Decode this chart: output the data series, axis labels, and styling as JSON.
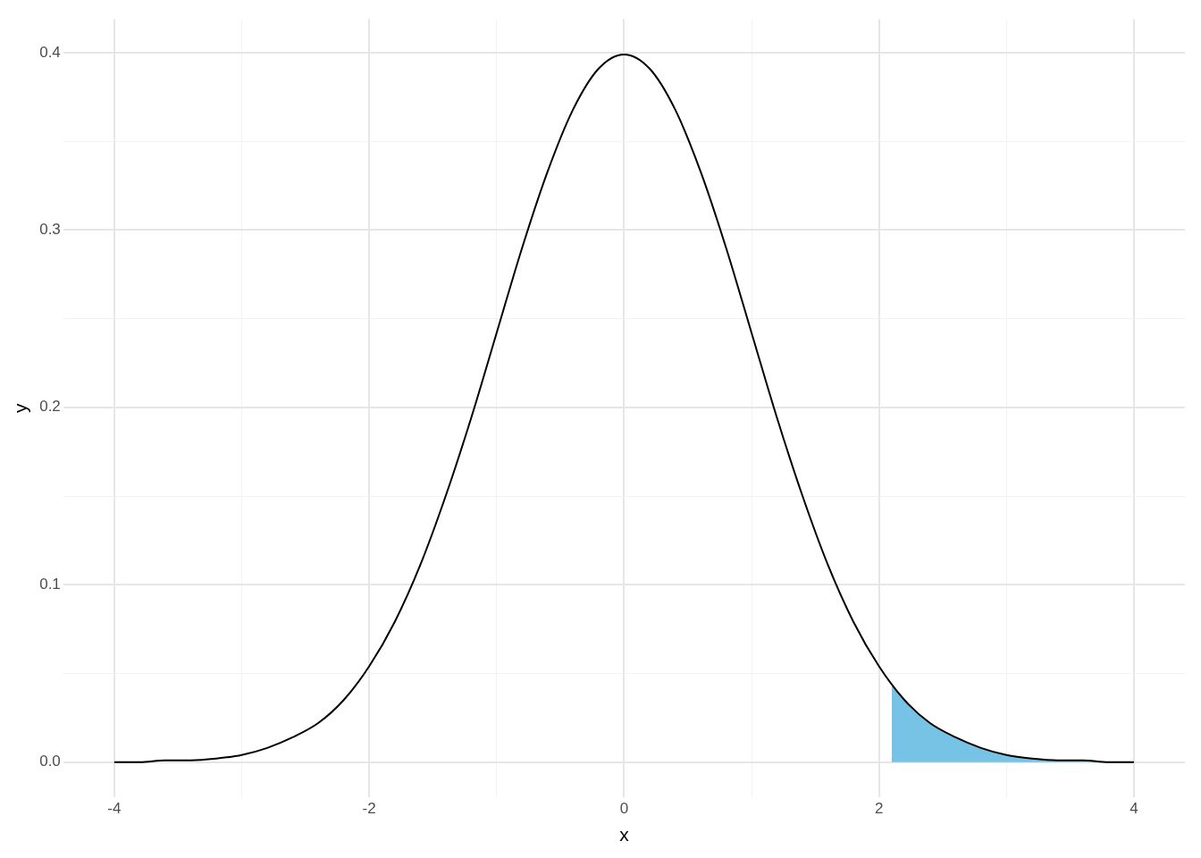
{
  "chart_data": {
    "type": "line",
    "xlabel": "x",
    "ylabel": "y",
    "xlim": [
      -4.4,
      4.4
    ],
    "ylim": [
      -0.02,
      0.419
    ],
    "xticks": [
      -4,
      {
        "value": -3,
        "label": null
      },
      -2,
      {
        "value": -1,
        "label": null
      },
      0,
      {
        "value": 1,
        "label": null
      },
      2,
      {
        "value": 3,
        "label": null
      },
      4
    ],
    "yticks": [
      {
        "value": 0,
        "label": "0.0"
      },
      {
        "value": 0.05,
        "label": null
      },
      0.1,
      {
        "value": 0.15,
        "label": null
      },
      0.2,
      {
        "value": 0.25,
        "label": null
      },
      0.3,
      {
        "value": 0.35,
        "label": null
      },
      0.4
    ],
    "grid": true,
    "series": [
      {
        "type": "area",
        "color": "#76c3e6",
        "x": [
          2.1,
          2.2,
          2.4,
          2.6,
          2.8,
          3.0,
          3.2,
          3.4,
          3.6,
          3.8,
          4.0
        ],
        "values": [
          0.044,
          0.035,
          0.022,
          0.014,
          0.008,
          0.004,
          0.002,
          0.001,
          0.001,
          0.0,
          0.0
        ]
      },
      {
        "type": "line",
        "color": "#000000",
        "x": [
          -4,
          -3.8,
          -3.6,
          -3.4,
          -3.2,
          -3,
          -2.8,
          -2.6,
          -2.4,
          -2.2,
          -2,
          -1.8,
          -1.6,
          -1.4,
          -1.2,
          -1,
          -0.8,
          -0.6,
          -0.4,
          -0.2,
          0,
          0.2,
          0.4,
          0.6,
          0.8,
          1,
          1.2,
          1.4,
          1.6,
          1.8,
          2,
          2.2,
          2.4,
          2.6,
          2.8,
          3,
          3.2,
          3.4,
          3.6,
          3.8,
          4
        ],
        "values": [
          0.0,
          0.0,
          0.001,
          0.001,
          0.002,
          0.004,
          0.008,
          0.014,
          0.022,
          0.035,
          0.054,
          0.079,
          0.111,
          0.15,
          0.194,
          0.242,
          0.29,
          0.333,
          0.368,
          0.391,
          0.399,
          0.391,
          0.368,
          0.333,
          0.29,
          0.242,
          0.194,
          0.15,
          0.111,
          0.079,
          0.054,
          0.035,
          0.022,
          0.014,
          0.008,
          0.004,
          0.002,
          0.001,
          0.001,
          0.0,
          0.0
        ]
      }
    ]
  }
}
